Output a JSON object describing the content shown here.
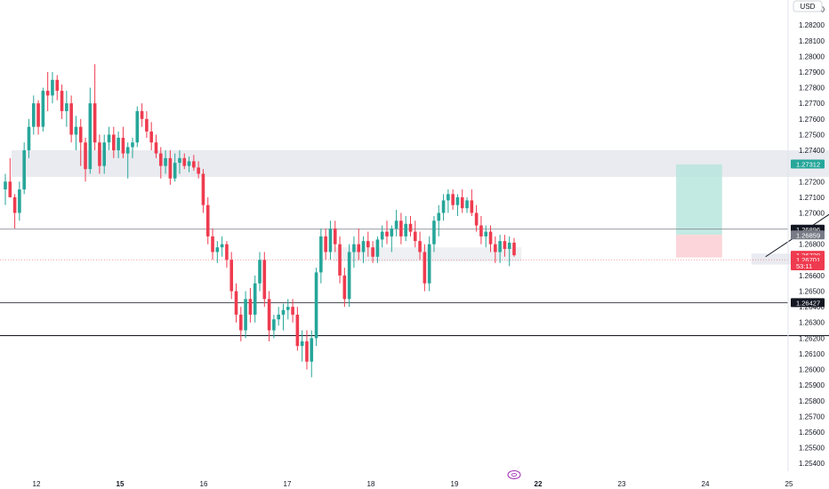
{
  "currency_badge": "USD",
  "session_icon": "calendar-icon",
  "colors": {
    "up": "#26a69a",
    "down": "#ef3b4f",
    "grid": "#ffffff",
    "zone": "#e9ebf0",
    "tp_zone": "#b9e5de",
    "sl_zone": "#fbd0d5",
    "line": "#131722"
  },
  "chart_data": {
    "type": "candlestick",
    "y_axis": {
      "range": [
        1.2535,
        1.2836
      ],
      "ticks": [
        "1.28200",
        "1.28100",
        "1.28000",
        "1.27900",
        "1.27800",
        "1.27700",
        "1.27600",
        "1.27500",
        "1.27400",
        "1.27200",
        "1.27100",
        "1.27000",
        "1.26800",
        "1.26600",
        "1.26500",
        "1.26300",
        "1.26200",
        "1.26100",
        "1.26000",
        "1.25900",
        "1.25800",
        "1.25700",
        "1.25600",
        "1.25500",
        "1.25400"
      ],
      "partial_top_tick": "1.28300",
      "partial_tick_under_label": "1.26400"
    },
    "x_axis": {
      "ticks": [
        {
          "label": "12",
          "bold": false
        },
        {
          "label": "15",
          "bold": true
        },
        {
          "label": "16",
          "bold": false
        },
        {
          "label": "17",
          "bold": false
        },
        {
          "label": "18",
          "bold": false
        },
        {
          "label": "19",
          "bold": false
        },
        {
          "label": "22",
          "bold": true
        },
        {
          "label": "23",
          "bold": false
        },
        {
          "label": "24",
          "bold": false
        },
        {
          "label": "25",
          "bold": false
        }
      ]
    },
    "price_labels": [
      {
        "value": "1.27312",
        "price": 1.27312,
        "bg": "#26a69a",
        "fg": "#ffffff"
      },
      {
        "value": "1.26896",
        "price": 1.26896,
        "bg": "#131722",
        "fg": "#ffffff"
      },
      {
        "value": "1.26859",
        "price": 1.26859,
        "bg": "#787b86",
        "fg": "#ffffff"
      },
      {
        "value": "1.26729",
        "price": 1.26729,
        "bg": "#ef3b4f",
        "fg": "#ffffff"
      },
      {
        "value": "1.26701",
        "price": 1.26701,
        "bg": "#ef3b4f",
        "fg": "#ffffff"
      },
      {
        "value": "53:11",
        "price": 1.26662,
        "bg": "#ef3b4f",
        "fg": "#ffffff"
      },
      {
        "value": "1.26427",
        "price": 1.26427,
        "bg": "#131722",
        "fg": "#ffffff"
      }
    ],
    "horizontal_lines": [
      {
        "price": 1.26896,
        "from_day": 11.55,
        "to_day": 25.3,
        "color": "#787b86",
        "width": 0.8
      },
      {
        "price": 1.26427,
        "from_day": 11.55,
        "to_day": 25.3,
        "color": "#131722",
        "width": 0.8
      },
      {
        "price": 1.26216,
        "from_day": 11.55,
        "to_day": 24.8,
        "color": "#131722",
        "width": 1
      },
      {
        "price": 1.26701,
        "from_day": 11.55,
        "to_day": 25.3,
        "color": "#ef3b4f",
        "width": 0.6,
        "dash": "1,2"
      }
    ],
    "zones": [
      {
        "from_day": 11.7,
        "to_day": 23.2,
        "top": 1.274,
        "bottom": 1.2723,
        "color": "#e9ebf0"
      },
      {
        "from_day": 15.55,
        "to_day": 17.8,
        "top": 1.2678,
        "bottom": 1.2669,
        "color": "#eef0f3"
      },
      {
        "from_day": 20.55,
        "to_day": 21.3,
        "top": 1.2674,
        "bottom": 1.2667,
        "color": "#e9ebf0"
      }
    ],
    "position": {
      "entry": 1.2686,
      "target": 1.2731,
      "stop": 1.26715,
      "from_day": 19.65,
      "to_day": 20.2
    },
    "projection": [
      {
        "day": 20.72,
        "price": 1.2672
      },
      {
        "day": 22.38,
        "price": 1.2731
      },
      {
        "day": 23.0,
        "price": 1.2632
      }
    ],
    "candles": [
      [
        1.2715,
        1.2725,
        1.2705,
        1.272
      ],
      [
        1.272,
        1.2735,
        1.271,
        1.271
      ],
      [
        1.271,
        1.2712,
        1.269,
        1.27
      ],
      [
        1.27,
        1.272,
        1.2695,
        1.2715
      ],
      [
        1.2715,
        1.2745,
        1.2712,
        1.274
      ],
      [
        1.274,
        1.276,
        1.2735,
        1.2755
      ],
      [
        1.2755,
        1.2775,
        1.275,
        1.277
      ],
      [
        1.277,
        1.2772,
        1.275,
        1.2755
      ],
      [
        1.2755,
        1.278,
        1.2752,
        1.2778
      ],
      [
        1.2778,
        1.279,
        1.2765,
        1.2775
      ],
      [
        1.2775,
        1.279,
        1.277,
        1.2785
      ],
      [
        1.2785,
        1.2788,
        1.2772,
        1.2778
      ],
      [
        1.2778,
        1.2782,
        1.276,
        1.2765
      ],
      [
        1.2765,
        1.2778,
        1.2755,
        1.277
      ],
      [
        1.277,
        1.2775,
        1.2745,
        1.275
      ],
      [
        1.275,
        1.2762,
        1.274,
        1.2755
      ],
      [
        1.2755,
        1.276,
        1.273,
        1.2745
      ],
      [
        1.2745,
        1.2748,
        1.272,
        1.2728
      ],
      [
        1.2728,
        1.278,
        1.2725,
        1.277
      ],
      [
        1.277,
        1.2795,
        1.274,
        1.2745
      ],
      [
        1.2745,
        1.275,
        1.2725,
        1.273
      ],
      [
        1.273,
        1.275,
        1.2725,
        1.2745
      ],
      [
        1.2745,
        1.2755,
        1.274,
        1.275
      ],
      [
        1.275,
        1.2755,
        1.2735,
        1.274
      ],
      [
        1.274,
        1.2752,
        1.2735,
        1.2748
      ],
      [
        1.2748,
        1.2755,
        1.2735,
        1.2738
      ],
      [
        1.2738,
        1.2745,
        1.2722,
        1.2742
      ],
      [
        1.2742,
        1.2748,
        1.2735,
        1.2745
      ],
      [
        1.2745,
        1.2768,
        1.2742,
        1.2765
      ],
      [
        1.2765,
        1.277,
        1.2755,
        1.276
      ],
      [
        1.276,
        1.2765,
        1.2748,
        1.2752
      ],
      [
        1.2752,
        1.2758,
        1.274,
        1.2745
      ],
      [
        1.2745,
        1.275,
        1.2735,
        1.2738
      ],
      [
        1.2738,
        1.2742,
        1.2722,
        1.273
      ],
      [
        1.273,
        1.274,
        1.2725,
        1.2735
      ],
      [
        1.2735,
        1.274,
        1.2718,
        1.2722
      ],
      [
        1.2722,
        1.2738,
        1.272,
        1.2732
      ],
      [
        1.2732,
        1.274,
        1.2725,
        1.2735
      ],
      [
        1.2735,
        1.2738,
        1.2728,
        1.273
      ],
      [
        1.273,
        1.2736,
        1.2726,
        1.2733
      ],
      [
        1.2733,
        1.2737,
        1.2727,
        1.2729
      ],
      [
        1.2729,
        1.2733,
        1.2722,
        1.2725
      ],
      [
        1.2725,
        1.2728,
        1.27,
        1.2705
      ],
      [
        1.2705,
        1.271,
        1.268,
        1.2685
      ],
      [
        1.2685,
        1.269,
        1.267,
        1.2675
      ],
      [
        1.2675,
        1.2682,
        1.2668,
        1.2678
      ],
      [
        1.2678,
        1.2685,
        1.2672,
        1.268
      ],
      [
        1.268,
        1.2682,
        1.2665,
        1.267
      ],
      [
        1.267,
        1.2675,
        1.2645,
        1.265
      ],
      [
        1.265,
        1.2655,
        1.263,
        1.2635
      ],
      [
        1.2635,
        1.264,
        1.2618,
        1.2625
      ],
      [
        1.2625,
        1.265,
        1.262,
        1.2645
      ],
      [
        1.2645,
        1.2652,
        1.263,
        1.2635
      ],
      [
        1.2635,
        1.266,
        1.263,
        1.2655
      ],
      [
        1.2655,
        1.2675,
        1.265,
        1.267
      ],
      [
        1.267,
        1.2675,
        1.264,
        1.2645
      ],
      [
        1.2645,
        1.265,
        1.2618,
        1.2625
      ],
      [
        1.2625,
        1.2635,
        1.262,
        1.2632
      ],
      [
        1.2632,
        1.264,
        1.2628,
        1.2635
      ],
      [
        1.2635,
        1.2642,
        1.2625,
        1.2638
      ],
      [
        1.2638,
        1.2645,
        1.2632,
        1.264
      ],
      [
        1.264,
        1.2645,
        1.263,
        1.2635
      ],
      [
        1.2635,
        1.264,
        1.2612,
        1.2615
      ],
      [
        1.2615,
        1.2625,
        1.2605,
        1.2618
      ],
      [
        1.2618,
        1.2625,
        1.26,
        1.2605
      ],
      [
        1.2605,
        1.2625,
        1.2595,
        1.262
      ],
      [
        1.262,
        1.2665,
        1.2615,
        1.2662
      ],
      [
        1.2662,
        1.269,
        1.2655,
        1.2685
      ],
      [
        1.2685,
        1.269,
        1.267,
        1.2675
      ],
      [
        1.2675,
        1.2695,
        1.267,
        1.269
      ],
      [
        1.269,
        1.2695,
        1.2675,
        1.268
      ],
      [
        1.268,
        1.2685,
        1.2655,
        1.266
      ],
      [
        1.266,
        1.2665,
        1.264,
        1.2645
      ],
      [
        1.2645,
        1.268,
        1.264,
        1.2675
      ],
      [
        1.2675,
        1.2685,
        1.2665,
        1.268
      ],
      [
        1.268,
        1.269,
        1.267,
        1.2675
      ],
      [
        1.2675,
        1.2685,
        1.2668,
        1.2682
      ],
      [
        1.2682,
        1.2688,
        1.2672,
        1.2678
      ],
      [
        1.2678,
        1.2682,
        1.2668,
        1.2672
      ],
      [
        1.2672,
        1.2685,
        1.2668,
        1.2683
      ],
      [
        1.2683,
        1.2692,
        1.2678,
        1.2688
      ],
      [
        1.2688,
        1.2695,
        1.268,
        1.2685
      ],
      [
        1.2685,
        1.2692,
        1.2675,
        1.269
      ],
      [
        1.269,
        1.2702,
        1.2685,
        1.2695
      ],
      [
        1.2695,
        1.27,
        1.268,
        1.2685
      ],
      [
        1.2685,
        1.2698,
        1.2682,
        1.2693
      ],
      [
        1.2693,
        1.2698,
        1.2685,
        1.2688
      ],
      [
        1.2688,
        1.2695,
        1.2678,
        1.2682
      ],
      [
        1.2682,
        1.2688,
        1.267,
        1.2675
      ],
      [
        1.2675,
        1.268,
        1.265,
        1.2655
      ],
      [
        1.2655,
        1.2685,
        1.265,
        1.268
      ],
      [
        1.268,
        1.2698,
        1.2675,
        1.2695
      ],
      [
        1.2695,
        1.2705,
        1.2685,
        1.27
      ],
      [
        1.27,
        1.2712,
        1.2695,
        1.2708
      ],
      [
        1.2708,
        1.2715,
        1.27,
        1.2712
      ],
      [
        1.2712,
        1.2715,
        1.2702,
        1.2705
      ],
      [
        1.2705,
        1.2712,
        1.2698,
        1.271
      ],
      [
        1.271,
        1.2715,
        1.27,
        1.2703
      ],
      [
        1.2703,
        1.271,
        1.27,
        1.2708
      ],
      [
        1.2708,
        1.2715,
        1.2698,
        1.27
      ],
      [
        1.27,
        1.2705,
        1.2688,
        1.2692
      ],
      [
        1.2692,
        1.2698,
        1.268,
        1.2685
      ],
      [
        1.2685,
        1.2692,
        1.2678,
        1.2688
      ],
      [
        1.2688,
        1.2692,
        1.2675,
        1.268
      ],
      [
        1.268,
        1.2685,
        1.2668,
        1.2675
      ],
      [
        1.2675,
        1.2686,
        1.2668,
        1.2682
      ],
      [
        1.2682,
        1.2686,
        1.2672,
        1.2677
      ],
      [
        1.2677,
        1.2685,
        1.2666,
        1.2681
      ],
      [
        1.2681,
        1.2684,
        1.2672,
        1.2673
      ]
    ]
  }
}
